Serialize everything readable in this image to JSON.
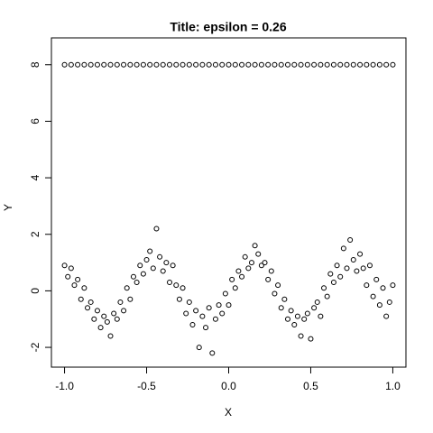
{
  "chart_data": {
    "type": "scatter",
    "title": "Title: epsilon =  0.26",
    "x_label": "X",
    "y_label": "Y",
    "xlim": [
      -1.08,
      1.08
    ],
    "ylim": [
      -2.7,
      8.95
    ],
    "xticks": [
      {
        "value": -1,
        "label": "-1.0"
      },
      {
        "value": -0.5,
        "label": "-0.5"
      },
      {
        "value": 0,
        "label": "0.0"
      },
      {
        "value": 0.5,
        "label": "0.5"
      },
      {
        "value": 1,
        "label": "1.0"
      }
    ],
    "yticks": [
      -2,
      0,
      2,
      4,
      6,
      8
    ],
    "color": "#000000",
    "grid": false,
    "series": [
      {
        "x": [
          -1,
          -0.98,
          -0.96,
          -0.94,
          -0.92,
          -0.9,
          -0.88,
          -0.86,
          -0.84,
          -0.82,
          -0.8,
          -0.78,
          -0.76,
          -0.74,
          -0.72,
          -0.7,
          -0.68,
          -0.66,
          -0.64,
          -0.62,
          -0.6,
          -0.58,
          -0.56,
          -0.54,
          -0.52,
          -0.5,
          -0.48,
          -0.46,
          -0.44,
          -0.42,
          -0.4,
          -0.38,
          -0.36,
          -0.34,
          -0.32,
          -0.3,
          -0.28,
          -0.26,
          -0.24,
          -0.22,
          -0.2,
          -0.18,
          -0.16,
          -0.14,
          -0.12,
          -0.1,
          -0.08,
          -0.06,
          -0.04,
          -0.02,
          0,
          0.02,
          0.04,
          0.06,
          0.08,
          0.1,
          0.12,
          0.14,
          0.16,
          0.18,
          0.2,
          0.22,
          0.24,
          0.26,
          0.28,
          0.3,
          0.32,
          0.34,
          0.36,
          0.38,
          0.4,
          0.42,
          0.44,
          0.46,
          0.48,
          0.5,
          0.52,
          0.54,
          0.56,
          0.58,
          0.6,
          0.62,
          0.64,
          0.66,
          0.68,
          0.7,
          0.72,
          0.74,
          0.76,
          0.78,
          0.8,
          0.82,
          0.84,
          0.86,
          0.88,
          0.9,
          0.92,
          0.94,
          0.96,
          0.98,
          1
        ],
        "values": [
          0.9,
          0.5,
          0.8,
          0.2,
          0.4,
          -0.3,
          0.1,
          -0.6,
          -0.4,
          -1.0,
          -0.7,
          -1.3,
          -0.9,
          -1.1,
          -1.6,
          -0.8,
          -1.0,
          -0.4,
          -0.7,
          0.1,
          -0.3,
          0.5,
          0.3,
          0.9,
          0.6,
          1.1,
          1.4,
          0.8,
          2.2,
          1.2,
          0.7,
          1.0,
          0.3,
          0.9,
          0.2,
          -0.3,
          0.1,
          -0.8,
          -0.4,
          -1.2,
          -0.7,
          -2.0,
          -0.9,
          -1.3,
          -0.6,
          -2.2,
          -1.0,
          -0.5,
          -0.8,
          -0.1,
          -0.5,
          0.4,
          0.1,
          0.7,
          0.5,
          1.2,
          0.8,
          1.0,
          1.6,
          1.3,
          0.9,
          1.0,
          0.4,
          0.7,
          -0.1,
          0.2,
          -0.6,
          -0.3,
          -1.0,
          -0.7,
          -1.2,
          -0.9,
          -1.6,
          -1.0,
          -0.8,
          -1.7,
          -0.6,
          -0.4,
          -0.9,
          0.1,
          -0.2,
          0.6,
          0.3,
          0.9,
          0.5,
          1.5,
          0.8,
          1.8,
          1.1,
          0.7,
          1.3,
          0.8,
          0.2,
          0.9,
          -0.2,
          0.4,
          -0.5,
          0.1,
          -0.9,
          -0.4,
          0.2
        ]
      },
      {
        "x": [
          -1,
          -0.96,
          -0.92,
          -0.88,
          -0.84,
          -0.8,
          -0.76,
          -0.72,
          -0.68,
          -0.64,
          -0.6,
          -0.56,
          -0.52,
          -0.48,
          -0.44,
          -0.4,
          -0.36,
          -0.32,
          -0.28,
          -0.24,
          -0.2,
          -0.16,
          -0.12,
          -0.08,
          -0.04,
          0,
          0.04,
          0.08,
          0.12,
          0.16,
          0.2,
          0.24,
          0.28,
          0.32,
          0.36,
          0.4,
          0.44,
          0.48,
          0.52,
          0.56,
          0.6,
          0.64,
          0.68,
          0.72,
          0.76,
          0.8,
          0.84,
          0.88,
          0.92,
          0.96,
          1
        ],
        "values": [
          8,
          8,
          8,
          8,
          8,
          8,
          8,
          8,
          8,
          8,
          8,
          8,
          8,
          8,
          8,
          8,
          8,
          8,
          8,
          8,
          8,
          8,
          8,
          8,
          8,
          8,
          8,
          8,
          8,
          8,
          8,
          8,
          8,
          8,
          8,
          8,
          8,
          8,
          8,
          8,
          8,
          8,
          8,
          8,
          8,
          8,
          8,
          8,
          8,
          8,
          8
        ]
      }
    ]
  }
}
